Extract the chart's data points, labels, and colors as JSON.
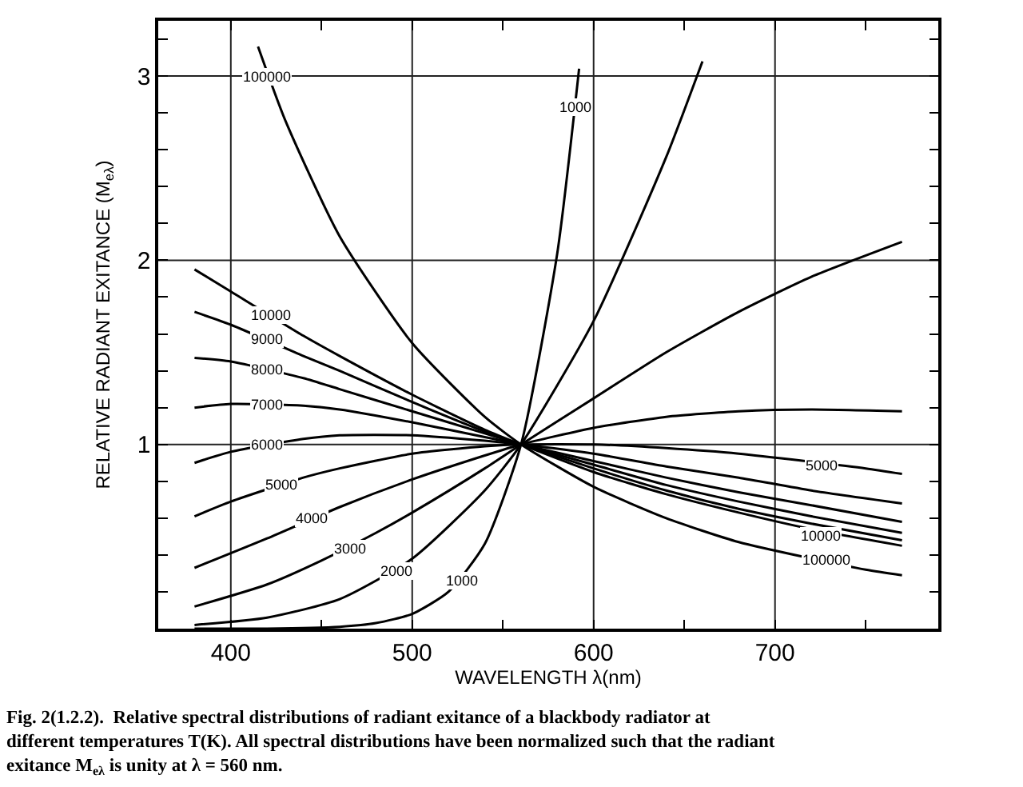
{
  "chart_data": {
    "type": "line",
    "xlabel": "WAVELENGTH λ(nm)",
    "ylabel": "RELATIVE RADIANT EXITANCE (M$_{eλ}$)",
    "xlim": [
      360,
      790
    ],
    "ylim": [
      0,
      3.3
    ],
    "xticks": [
      400,
      {
        "value": 450,
        "label": null
      },
      500,
      {
        "value": 550,
        "label": null
      },
      600,
      {
        "value": 650,
        "label": null
      },
      700,
      {
        "value": 750,
        "label": null
      }
    ],
    "yticks": [
      {
        "value": 0.2,
        "label": null
      },
      {
        "value": 0.4,
        "label": null
      },
      {
        "value": 0.6,
        "label": null
      },
      {
        "value": 0.8,
        "label": null
      },
      1,
      {
        "value": 1.2,
        "label": null
      },
      {
        "value": 1.4,
        "label": null
      },
      {
        "value": 1.6,
        "label": null
      },
      {
        "value": 1.8,
        "label": null
      },
      2,
      {
        "value": 2.2,
        "label": null
      },
      {
        "value": 2.4,
        "label": null
      },
      {
        "value": 2.6,
        "label": null
      },
      {
        "value": 2.8,
        "label": null
      },
      3,
      {
        "value": 3.2,
        "label": null
      }
    ],
    "grid": true,
    "marker": "none",
    "line_style": "solid",
    "series": [
      {
        "color": "#000000",
        "x": [
          415,
          430,
          460,
          500,
          540,
          560,
          600,
          640,
          680,
          750,
          770
        ],
        "values": [
          3.16,
          2.76,
          2.13,
          1.55,
          1.15,
          1,
          0.77,
          0.6,
          0.47,
          0.32,
          0.29
        ]
      },
      {
        "color": "#000000",
        "x": [
          380,
          400,
          440,
          460,
          500,
          540,
          560,
          600,
          640,
          680,
          720,
          770
        ],
        "values": [
          1.95,
          1.83,
          1.59,
          1.48,
          1.27,
          1.08,
          1,
          0.85,
          0.73,
          0.63,
          0.54,
          0.45
        ]
      },
      {
        "color": "#000000",
        "x": [
          380,
          400,
          440,
          460,
          500,
          540,
          560,
          600,
          640,
          680,
          720,
          770
        ],
        "values": [
          1.72,
          1.65,
          1.48,
          1.4,
          1.23,
          1.07,
          1,
          0.87,
          0.75,
          0.65,
          0.57,
          0.48
        ]
      },
      {
        "color": "#000000",
        "x": [
          380,
          400,
          440,
          460,
          500,
          540,
          560,
          600,
          640,
          680,
          720,
          770
        ],
        "values": [
          1.47,
          1.45,
          1.36,
          1.3,
          1.18,
          1.06,
          1,
          0.89,
          0.78,
          0.69,
          0.61,
          0.52
        ]
      },
      {
        "color": "#000000",
        "x": [
          380,
          400,
          440,
          460,
          500,
          540,
          560,
          600,
          640,
          680,
          720,
          770
        ],
        "values": [
          1.2,
          1.22,
          1.21,
          1.19,
          1.12,
          1.04,
          1,
          0.91,
          0.82,
          0.74,
          0.67,
          0.58
        ]
      },
      {
        "color": "#000000",
        "x": [
          380,
          400,
          440,
          460,
          500,
          540,
          560,
          600,
          640,
          680,
          720,
          770
        ],
        "values": [
          0.9,
          0.96,
          1.03,
          1.05,
          1.05,
          1.02,
          1,
          0.95,
          0.88,
          0.82,
          0.75,
          0.68
        ]
      },
      {
        "color": "#000000",
        "x": [
          380,
          400,
          440,
          460,
          500,
          540,
          560,
          600,
          640,
          680,
          750,
          770
        ],
        "values": [
          0.61,
          0.69,
          0.82,
          0.87,
          0.95,
          0.99,
          1,
          1.0,
          0.98,
          0.95,
          0.87,
          0.84
        ]
      },
      {
        "color": "#000000",
        "x": [
          380,
          420,
          460,
          500,
          540,
          560,
          600,
          640,
          680,
          720,
          770
        ],
        "values": [
          0.33,
          0.49,
          0.66,
          0.81,
          0.94,
          1,
          1.09,
          1.15,
          1.18,
          1.19,
          1.18
        ]
      },
      {
        "color": "#000000",
        "x": [
          380,
          420,
          450,
          480,
          500,
          540,
          560,
          600,
          640,
          680,
          720,
          770
        ],
        "values": [
          0.12,
          0.24,
          0.37,
          0.52,
          0.63,
          0.87,
          1,
          1.25,
          1.5,
          1.72,
          1.91,
          2.1
        ]
      },
      {
        "color": "#000000",
        "x": [
          380,
          420,
          460,
          500,
          540,
          560,
          600,
          640,
          660
        ],
        "values": [
          0.02,
          0.06,
          0.16,
          0.38,
          0.75,
          1,
          1.67,
          2.56,
          3.08
        ]
      },
      {
        "color": "#000000",
        "x": [
          380,
          420,
          460,
          480,
          500,
          520,
          540,
          560,
          580,
          592
        ],
        "values": [
          0,
          0,
          0.01,
          0.03,
          0.08,
          0.2,
          0.46,
          1,
          2.04,
          3.04
        ]
      }
    ],
    "annotations": [
      {
        "text": "100000",
        "x": 420,
        "y": 3.0
      },
      {
        "text": "10000",
        "x": 422,
        "y": 1.7
      },
      {
        "text": "9000",
        "x": 420,
        "y": 1.57
      },
      {
        "text": "8000",
        "x": 420,
        "y": 1.41
      },
      {
        "text": "7000",
        "x": 420,
        "y": 1.22
      },
      {
        "text": "6000",
        "x": 420,
        "y": 1.0
      },
      {
        "text": "5000",
        "x": 428,
        "y": 0.78
      },
      {
        "text": "4000",
        "x": 445,
        "y": 0.6
      },
      {
        "text": "3000",
        "x": 466,
        "y": 0.43
      },
      {
        "text": "2000",
        "x": 491,
        "y": 0.31
      },
      {
        "text": "1000",
        "x": 527,
        "y": 0.26
      },
      {
        "text": "1000",
        "x": 590,
        "y": 2.83
      },
      {
        "text": "5000",
        "x": 726,
        "y": 0.89
      },
      {
        "text": "10000",
        "x": 725,
        "y": 0.5
      },
      {
        "text": "100000",
        "x": 728,
        "y": 0.37
      },
      "Fig. 2(1.2.2).  Relative spectral distributions of radiant exitance of a blackbody radiator at different temperatures T(K). All spectral distributions have been normalized such that the radiant exitance M$_{eλ}$ is unity at λ = 560 nm."
    ]
  }
}
